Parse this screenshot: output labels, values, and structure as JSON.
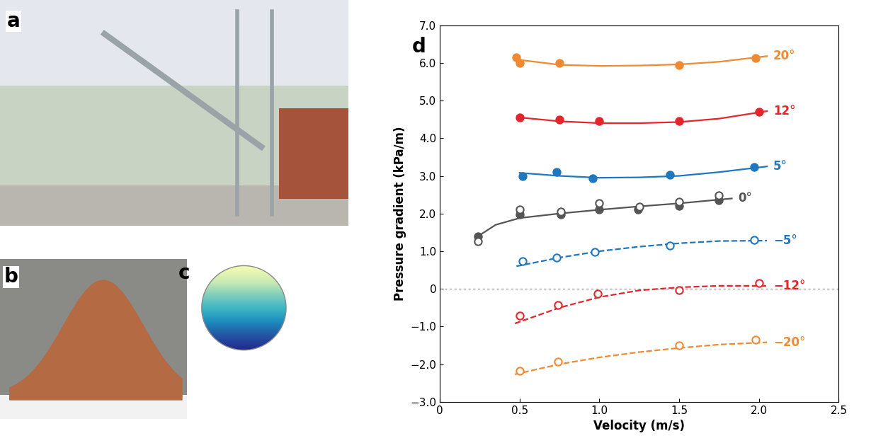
{
  "panel_labels": [
    "a",
    "b",
    "c"
  ],
  "chart_data": {
    "type": "line",
    "panel_label": "d",
    "x_label": "Velocity (m/s)",
    "y_label": "Pressure gradient (kPa/m)",
    "xlim": [
      0,
      2.5
    ],
    "xticks": [
      0,
      0.5,
      {
        "value": 1,
        "label": "1.0"
      },
      1.5,
      {
        "value": 2,
        "label": "2.0"
      },
      2.5
    ],
    "ylim": [
      -3,
      7
    ],
    "yticks": [
      {
        "value": -3,
        "label": "−3.0"
      },
      {
        "value": -2,
        "label": "−2.0"
      },
      {
        "value": -1,
        "label": "−1.0"
      },
      {
        "value": 0,
        "label": "0"
      },
      {
        "value": 1,
        "label": "1.0"
      },
      {
        "value": 2,
        "label": "2.0"
      },
      {
        "value": 3,
        "label": "3.0"
      },
      {
        "value": 4,
        "label": "4.0"
      },
      {
        "value": 5,
        "label": "5.0"
      },
      {
        "value": 6,
        "label": "6.0"
      },
      {
        "value": 7,
        "label": "7.0"
      }
    ],
    "hlines": [
      0
    ],
    "grid": false,
    "series": [
      {
        "name": "20°",
        "type": "line",
        "color": "#f08a32",
        "line_style": "solid",
        "x": [
          0.5,
          0.75,
          1.0,
          1.25,
          1.5,
          1.75,
          2.05
        ],
        "values": [
          6.08,
          5.95,
          5.92,
          5.93,
          5.96,
          6.03,
          6.18
        ]
      },
      {
        "type": "scatter",
        "color": "#f08a32",
        "marker": "filled_circle",
        "x": [
          0.48,
          0.5,
          0.75,
          1.5,
          1.98
        ],
        "values": [
          6.15,
          6.0,
          6.0,
          5.95,
          6.13
        ]
      },
      {
        "name": "12°",
        "type": "line",
        "color": "#e3262b",
        "line_style": "solid",
        "x": [
          0.5,
          0.75,
          1.0,
          1.25,
          1.5,
          1.75,
          2.05
        ],
        "values": [
          4.55,
          4.45,
          4.4,
          4.4,
          4.43,
          4.52,
          4.72
        ]
      },
      {
        "type": "scatter",
        "color": "#e3262b",
        "marker": "filled_circle",
        "x": [
          0.5,
          0.75,
          1.0,
          1.5,
          2.0
        ],
        "values": [
          4.55,
          4.5,
          4.45,
          4.45,
          4.7
        ]
      },
      {
        "name": "5°",
        "type": "line",
        "color": "#1f77c0",
        "line_style": "solid",
        "x": [
          0.5,
          0.75,
          1.0,
          1.25,
          1.5,
          1.75,
          2.05
        ],
        "values": [
          3.08,
          3.0,
          2.95,
          2.96,
          3.0,
          3.1,
          3.25
        ]
      },
      {
        "type": "scatter",
        "color": "#1f77c0",
        "marker": "filled_circle",
        "x": [
          0.52,
          0.73,
          0.96,
          1.44,
          1.97
        ],
        "values": [
          3.0,
          3.1,
          2.93,
          3.02,
          3.23
        ]
      },
      {
        "name": "0°",
        "type": "line",
        "color": "#555555",
        "line_style": "solid",
        "x": [
          0.24,
          0.35,
          0.5,
          0.75,
          1.0,
          1.25,
          1.5,
          1.83
        ],
        "values": [
          1.4,
          1.7,
          1.88,
          2.0,
          2.1,
          2.19,
          2.27,
          2.4
        ]
      },
      {
        "type": "scatter",
        "color": "#555555",
        "marker": "filled_circle",
        "x": [
          0.24,
          0.5,
          0.76,
          1.0,
          1.24,
          1.5,
          1.75
        ],
        "values": [
          1.4,
          1.97,
          1.97,
          2.1,
          2.1,
          2.2,
          2.35
        ]
      },
      {
        "type": "scatter",
        "color": "#555555",
        "marker": "open_circle",
        "x": [
          0.24,
          0.5,
          0.76,
          1.0,
          1.25,
          1.5,
          1.75
        ],
        "values": [
          1.27,
          2.1,
          2.05,
          2.27,
          2.18,
          2.32,
          2.48
        ]
      },
      {
        "name": "−5°",
        "type": "line",
        "color": "#1f77c0",
        "line_style": "dashed",
        "x": [
          0.48,
          0.75,
          1.0,
          1.25,
          1.5,
          1.75,
          2.05
        ],
        "values": [
          0.6,
          0.83,
          1.0,
          1.12,
          1.21,
          1.27,
          1.28
        ]
      },
      {
        "type": "scatter",
        "color": "#1f77c0",
        "marker": "open_circle",
        "x": [
          0.52,
          0.73,
          0.97,
          1.44,
          1.97
        ],
        "values": [
          0.73,
          0.83,
          0.98,
          1.15,
          1.3
        ]
      },
      {
        "name": "−12°",
        "type": "line",
        "color": "#e3262b",
        "line_style": "dashed",
        "x": [
          0.47,
          0.75,
          1.0,
          1.25,
          1.5,
          1.75,
          2.05
        ],
        "values": [
          -0.92,
          -0.5,
          -0.22,
          -0.04,
          0.04,
          0.08,
          0.08
        ]
      },
      {
        "type": "scatter",
        "color": "#e3262b",
        "marker": "open_circle",
        "x": [
          0.5,
          0.74,
          0.99,
          1.5,
          2.0
        ],
        "values": [
          -0.72,
          -0.43,
          -0.13,
          -0.03,
          0.15
        ]
      },
      {
        "name": "−20°",
        "type": "line",
        "color": "#f08a32",
        "line_style": "dashed",
        "x": [
          0.47,
          0.75,
          1.0,
          1.25,
          1.5,
          1.75,
          2.05
        ],
        "values": [
          -2.27,
          -2.0,
          -1.82,
          -1.68,
          -1.57,
          -1.48,
          -1.42
        ]
      },
      {
        "type": "scatter",
        "color": "#f08a32",
        "marker": "open_circle",
        "x": [
          0.5,
          0.74,
          1.5,
          1.98
        ],
        "values": [
          -2.18,
          -1.93,
          -1.5,
          -1.35
        ]
      }
    ]
  }
}
